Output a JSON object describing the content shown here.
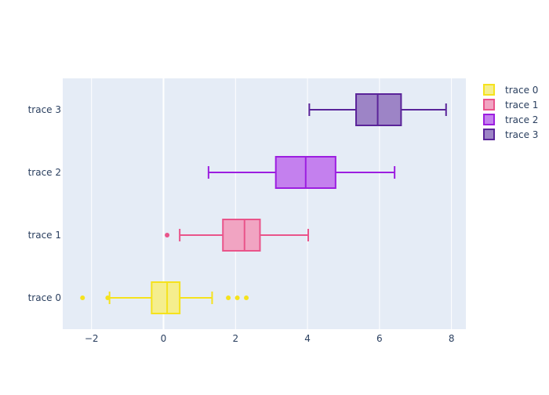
{
  "chart_data": {
    "type": "box",
    "orientation": "horizontal",
    "xlim": [
      -2.8,
      8.4
    ],
    "x_ticks": [
      -2,
      0,
      2,
      4,
      6,
      8
    ],
    "x_tick_labels": [
      "−2",
      "0",
      "2",
      "4",
      "6",
      "8"
    ],
    "grid": true,
    "plot_background": "#e5ecf6",
    "legend_position": "top-right",
    "series": [
      {
        "name": "trace 0",
        "color": "#f5e21d",
        "fill": "#f5ee8e",
        "whisker_low": -1.5,
        "q1": -0.33,
        "median": 0.1,
        "q3": 0.45,
        "whisker_high": 1.35,
        "outliers": [
          -2.25,
          -1.55,
          1.8,
          2.05,
          2.3
        ]
      },
      {
        "name": "trace 1",
        "color": "#e9548a",
        "fill": "#f1a4c2",
        "whisker_low": 0.45,
        "q1": 1.65,
        "median": 2.25,
        "q3": 2.68,
        "whisker_high": 4.02,
        "outliers": [
          0.1
        ]
      },
      {
        "name": "trace 2",
        "color": "#9c1ee0",
        "fill": "#c480ee",
        "whisker_low": 1.25,
        "q1": 3.12,
        "median": 3.95,
        "q3": 4.78,
        "whisker_high": 6.42,
        "outliers": []
      },
      {
        "name": "trace 3",
        "color": "#5a2499",
        "fill": "#9d84c6",
        "whisker_low": 4.05,
        "q1": 5.35,
        "median": 5.95,
        "q3": 6.6,
        "whisker_high": 7.85,
        "outliers": []
      }
    ]
  }
}
